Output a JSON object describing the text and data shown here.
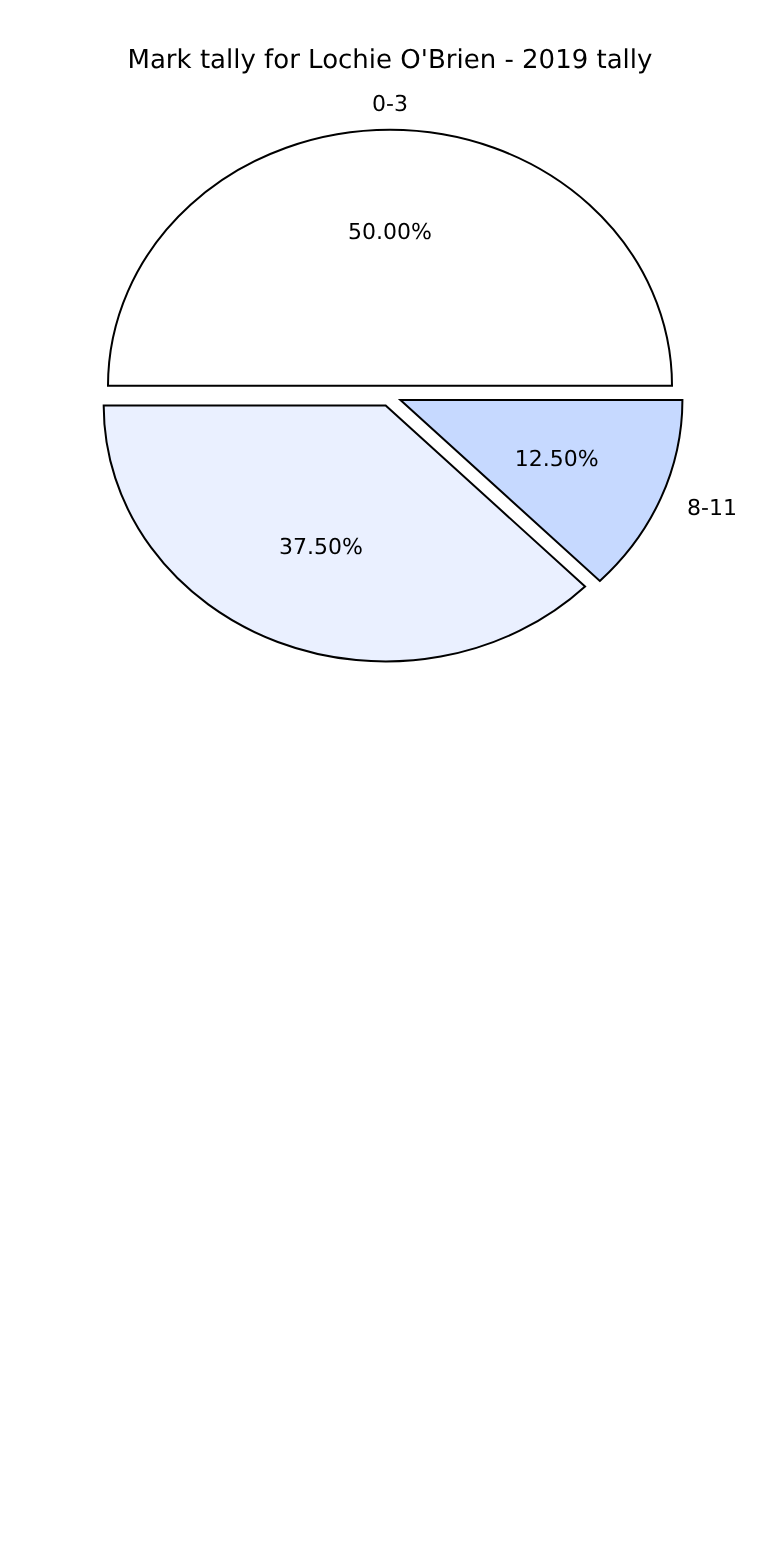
{
  "chart_data": {
    "type": "pie",
    "title": "Mark tally for Lochie O'Brien - 2019 tally",
    "categories": [
      "0-3",
      null,
      "8-11"
    ],
    "values": [
      50,
      37.5,
      12.5
    ],
    "colors": [
      "#ffffff",
      "#eaf0ff",
      "#c6d9ff"
    ],
    "value_labels": [
      "50.00%",
      "37.50%",
      "12.50%"
    ]
  }
}
